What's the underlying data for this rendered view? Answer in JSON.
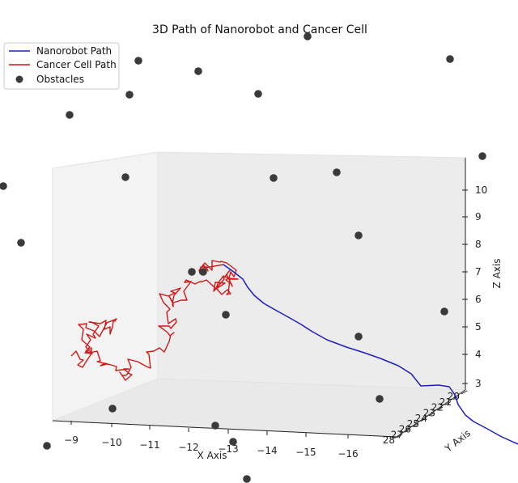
{
  "chart_data": {
    "type": "line3d",
    "title": "3D Path of Nanorobot and Cancer Cell",
    "xlabel": "X Axis",
    "ylabel": "Y Axis",
    "zlabel": "Z Axis",
    "x_ticks": [
      "−9",
      "−10",
      "−11",
      "−12",
      "−13",
      "−14",
      "−15",
      "−16"
    ],
    "y_ticks": [
      "20",
      "21",
      "22",
      "23",
      "24",
      "25",
      "26",
      "27",
      "28"
    ],
    "z_ticks": [
      "3",
      "4",
      "5",
      "6",
      "7",
      "8",
      "9",
      "10"
    ],
    "legend": {
      "location": "top-left",
      "entries": [
        {
          "label": "Nanorobot Path",
          "color": "#1f1fbf",
          "kind": "line"
        },
        {
          "label": "Cancer Cell Path",
          "color": "#d01818",
          "kind": "line"
        },
        {
          "label": "Obstacles",
          "color": "#3a3a3a",
          "kind": "marker"
        }
      ]
    },
    "series": [
      {
        "name": "Nanorobot Path",
        "color": "#1f1fbf"
      },
      {
        "name": "Cancer Cell Path",
        "color": "#d01818"
      },
      {
        "name": "Obstacles",
        "color": "#3a3a3a"
      }
    ]
  }
}
